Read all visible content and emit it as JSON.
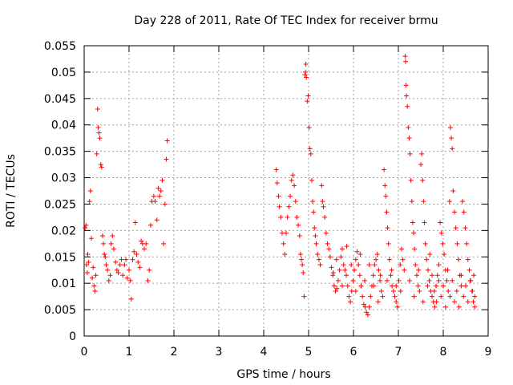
{
  "chart_data": {
    "type": "scatter",
    "title": "Day 228 of 2011, Rate Of TEC Index for receiver brmu",
    "xlabel": "GPS time / hours",
    "ylabel": "ROTI / TECUs",
    "xlim": [
      0,
      9
    ],
    "ylim": [
      0,
      0.055
    ],
    "x_ticks": [
      0,
      1,
      2,
      3,
      4,
      5,
      6,
      7,
      8,
      9
    ],
    "y_ticks": [
      0,
      0.005,
      0.01,
      0.015,
      0.02,
      0.025,
      0.03,
      0.035,
      0.04,
      0.045,
      0.05,
      0.055
    ],
    "x_tick_labels": [
      "0",
      "1",
      "2",
      "3",
      "4",
      "5",
      "6",
      "7",
      "8",
      "9"
    ],
    "y_tick_labels": [
      "0",
      "0.005",
      "0.01",
      "0.015",
      "0.02",
      "0.025",
      "0.03",
      "0.035",
      "0.04",
      "0.045",
      "0.05",
      "0.055"
    ],
    "grid": true,
    "marker": "+",
    "color": "#ff0000",
    "series": [
      {
        "name": "ROTI",
        "points": [
          [
            0.02,
            0.0205
          ],
          [
            0.04,
            0.021
          ],
          [
            0.05,
            0.0135
          ],
          [
            0.07,
            0.012
          ],
          [
            0.08,
            0.0155
          ],
          [
            0.1,
            0.014
          ],
          [
            0.12,
            0.0255
          ],
          [
            0.14,
            0.0275
          ],
          [
            0.16,
            0.0185
          ],
          [
            0.18,
            0.011
          ],
          [
            0.2,
            0.013
          ],
          [
            0.22,
            0.0095
          ],
          [
            0.24,
            0.0085
          ],
          [
            0.26,
            0.0115
          ],
          [
            0.28,
            0.0345
          ],
          [
            0.3,
            0.043
          ],
          [
            0.31,
            0.0395
          ],
          [
            0.33,
            0.0385
          ],
          [
            0.35,
            0.0375
          ],
          [
            0.37,
            0.0325
          ],
          [
            0.39,
            0.032
          ],
          [
            0.41,
            0.019
          ],
          [
            0.43,
            0.0175
          ],
          [
            0.45,
            0.0155
          ],
          [
            0.47,
            0.015
          ],
          [
            0.49,
            0.0135
          ],
          [
            0.52,
            0.0125
          ],
          [
            0.55,
            0.0105
          ],
          [
            0.58,
            0.0115
          ],
          [
            0.6,
            0.0175
          ],
          [
            0.63,
            0.019
          ],
          [
            0.66,
            0.0165
          ],
          [
            0.7,
            0.014
          ],
          [
            0.73,
            0.0125
          ],
          [
            0.76,
            0.012
          ],
          [
            0.8,
            0.0135
          ],
          [
            0.83,
            0.0145
          ],
          [
            0.86,
            0.0115
          ],
          [
            0.9,
            0.0135
          ],
          [
            0.93,
            0.0145
          ],
          [
            0.96,
            0.011
          ],
          [
            1.0,
            0.0125
          ],
          [
            1.03,
            0.0105
          ],
          [
            1.05,
            0.007
          ],
          [
            1.08,
            0.0145
          ],
          [
            1.11,
            0.016
          ],
          [
            1.14,
            0.0215
          ],
          [
            1.17,
            0.0155
          ],
          [
            1.2,
            0.014
          ],
          [
            1.24,
            0.013
          ],
          [
            1.27,
            0.018
          ],
          [
            1.3,
            0.0175
          ],
          [
            1.34,
            0.0165
          ],
          [
            1.38,
            0.0175
          ],
          [
            1.42,
            0.0105
          ],
          [
            1.45,
            0.0125
          ],
          [
            1.48,
            0.021
          ],
          [
            1.51,
            0.0255
          ],
          [
            1.55,
            0.0265
          ],
          [
            1.58,
            0.0255
          ],
          [
            1.62,
            0.022
          ],
          [
            1.65,
            0.028
          ],
          [
            1.68,
            0.0265
          ],
          [
            1.71,
            0.0275
          ],
          [
            1.74,
            0.0295
          ],
          [
            1.77,
            0.0175
          ],
          [
            1.8,
            0.025
          ],
          [
            1.83,
            0.0335
          ],
          [
            1.85,
            0.037
          ],
          [
            4.28,
            0.0315
          ],
          [
            4.3,
            0.029
          ],
          [
            4.33,
            0.0265
          ],
          [
            4.35,
            0.0245
          ],
          [
            4.38,
            0.0225
          ],
          [
            4.41,
            0.0195
          ],
          [
            4.44,
            0.0175
          ],
          [
            4.47,
            0.0155
          ],
          [
            4.5,
            0.0195
          ],
          [
            4.53,
            0.0225
          ],
          [
            4.56,
            0.0245
          ],
          [
            4.59,
            0.0265
          ],
          [
            4.62,
            0.0295
          ],
          [
            4.65,
            0.0305
          ],
          [
            4.68,
            0.0285
          ],
          [
            4.71,
            0.0255
          ],
          [
            4.74,
            0.0225
          ],
          [
            4.77,
            0.021
          ],
          [
            4.8,
            0.019
          ],
          [
            4.82,
            0.0155
          ],
          [
            4.84,
            0.0145
          ],
          [
            4.86,
            0.0135
          ],
          [
            4.88,
            0.012
          ],
          [
            4.9,
            0.0075
          ],
          [
            4.92,
            0.0495
          ],
          [
            4.93,
            0.05
          ],
          [
            4.94,
            0.0515
          ],
          [
            4.95,
            0.049
          ],
          [
            4.97,
            0.0445
          ],
          [
            4.99,
            0.0455
          ],
          [
            5.01,
            0.0395
          ],
          [
            5.03,
            0.0355
          ],
          [
            5.05,
            0.0345
          ],
          [
            5.07,
            0.0295
          ],
          [
            5.09,
            0.0255
          ],
          [
            5.11,
            0.0235
          ],
          [
            5.13,
            0.0205
          ],
          [
            5.15,
            0.019
          ],
          [
            5.17,
            0.0175
          ],
          [
            5.2,
            0.0155
          ],
          [
            5.23,
            0.0145
          ],
          [
            5.26,
            0.0135
          ],
          [
            5.29,
            0.0285
          ],
          [
            5.31,
            0.0255
          ],
          [
            5.33,
            0.0245
          ],
          [
            5.36,
            0.0225
          ],
          [
            5.39,
            0.0195
          ],
          [
            5.42,
            0.0175
          ],
          [
            5.45,
            0.0165
          ],
          [
            5.48,
            0.015
          ],
          [
            5.51,
            0.013
          ],
          [
            5.54,
            0.0115
          ],
          [
            5.57,
            0.0095
          ],
          [
            5.6,
            0.0085
          ],
          [
            5.63,
            0.009
          ],
          [
            5.66,
            0.0105
          ],
          [
            5.69,
            0.0125
          ],
          [
            5.72,
            0.015
          ],
          [
            5.75,
            0.0165
          ],
          [
            5.78,
            0.0135
          ],
          [
            5.81,
            0.0125
          ],
          [
            5.84,
            0.0115
          ],
          [
            5.87,
            0.0095
          ],
          [
            5.9,
            0.0075
          ],
          [
            5.93,
            0.0065
          ],
          [
            5.96,
            0.0085
          ],
          [
            5.99,
            0.0105
          ],
          [
            6.02,
            0.0125
          ],
          [
            6.05,
            0.0145
          ],
          [
            6.08,
            0.016
          ],
          [
            6.11,
            0.0135
          ],
          [
            6.14,
            0.0115
          ],
          [
            6.17,
            0.0095
          ],
          [
            6.2,
            0.0075
          ],
          [
            6.23,
            0.006
          ],
          [
            6.26,
            0.0055
          ],
          [
            6.29,
            0.0045
          ],
          [
            6.32,
            0.004
          ],
          [
            6.35,
            0.0055
          ],
          [
            6.38,
            0.0075
          ],
          [
            6.41,
            0.0095
          ],
          [
            6.44,
            0.0115
          ],
          [
            6.47,
            0.0135
          ],
          [
            6.5,
            0.0145
          ],
          [
            6.53,
            0.0155
          ],
          [
            6.56,
            0.0125
          ],
          [
            6.59,
            0.0105
          ],
          [
            6.62,
            0.0085
          ],
          [
            6.65,
            0.0075
          ],
          [
            6.68,
            0.0315
          ],
          [
            6.7,
            0.0285
          ],
          [
            6.72,
            0.0265
          ],
          [
            6.74,
            0.0235
          ],
          [
            6.76,
            0.0205
          ],
          [
            6.78,
            0.0175
          ],
          [
            6.8,
            0.0145
          ],
          [
            6.83,
            0.0115
          ],
          [
            6.86,
            0.0095
          ],
          [
            6.89,
            0.0085
          ],
          [
            6.92,
            0.0075
          ],
          [
            6.95,
            0.0065
          ],
          [
            6.98,
            0.0055
          ],
          [
            7.01,
            0.0105
          ],
          [
            7.04,
            0.0135
          ],
          [
            7.07,
            0.0165
          ],
          [
            7.1,
            0.0145
          ],
          [
            7.13,
            0.0125
          ],
          [
            7.15,
            0.053
          ],
          [
            7.16,
            0.052
          ],
          [
            7.17,
            0.0475
          ],
          [
            7.18,
            0.0455
          ],
          [
            7.2,
            0.0435
          ],
          [
            7.22,
            0.0395
          ],
          [
            7.24,
            0.0375
          ],
          [
            7.26,
            0.0345
          ],
          [
            7.28,
            0.0295
          ],
          [
            7.3,
            0.0255
          ],
          [
            7.32,
            0.0215
          ],
          [
            7.34,
            0.0195
          ],
          [
            7.36,
            0.0165
          ],
          [
            7.38,
            0.0135
          ],
          [
            7.41,
            0.0115
          ],
          [
            7.44,
            0.0095
          ],
          [
            7.47,
            0.0085
          ],
          [
            7.5,
            0.0325
          ],
          [
            7.52,
            0.0345
          ],
          [
            7.54,
            0.0295
          ],
          [
            7.56,
            0.0255
          ],
          [
            7.58,
            0.0215
          ],
          [
            7.6,
            0.0175
          ],
          [
            7.63,
            0.0145
          ],
          [
            7.66,
            0.0125
          ],
          [
            7.69,
            0.0105
          ],
          [
            7.72,
            0.0085
          ],
          [
            7.75,
            0.0075
          ],
          [
            7.78,
            0.0065
          ],
          [
            7.81,
            0.0055
          ],
          [
            7.84,
            0.0095
          ],
          [
            7.87,
            0.0115
          ],
          [
            7.9,
            0.0135
          ],
          [
            7.93,
            0.0215
          ],
          [
            7.96,
            0.0195
          ],
          [
            7.99,
            0.0175
          ],
          [
            8.02,
            0.0155
          ],
          [
            8.05,
            0.0125
          ],
          [
            8.08,
            0.0105
          ],
          [
            8.11,
            0.0085
          ],
          [
            8.14,
            0.0255
          ],
          [
            8.16,
            0.0395
          ],
          [
            8.18,
            0.0375
          ],
          [
            8.2,
            0.0355
          ],
          [
            8.22,
            0.0275
          ],
          [
            8.25,
            0.0235
          ],
          [
            8.28,
            0.0205
          ],
          [
            8.31,
            0.0175
          ],
          [
            8.34,
            0.0145
          ],
          [
            8.37,
            0.0115
          ],
          [
            8.4,
            0.0095
          ],
          [
            8.43,
            0.0255
          ],
          [
            8.46,
            0.0235
          ],
          [
            8.49,
            0.0205
          ],
          [
            8.52,
            0.0175
          ],
          [
            8.55,
            0.0145
          ],
          [
            8.58,
            0.0125
          ],
          [
            8.61,
            0.0105
          ],
          [
            8.64,
            0.0085
          ],
          [
            8.67,
            0.0065
          ],
          [
            8.7,
            0.0055
          ],
          [
            5.55,
            0.012
          ],
          [
            5.62,
            0.0145
          ],
          [
            5.75,
            0.0095
          ],
          [
            5.85,
            0.017
          ],
          [
            5.95,
            0.0135
          ],
          [
            6.05,
            0.0085
          ],
          [
            6.15,
            0.0155
          ],
          [
            6.25,
            0.0105
          ],
          [
            6.35,
            0.0135
          ],
          [
            6.45,
            0.0095
          ],
          [
            6.55,
            0.0065
          ],
          [
            6.6,
            0.0115
          ],
          [
            6.75,
            0.0105
          ],
          [
            6.85,
            0.0125
          ],
          [
            6.95,
            0.0095
          ],
          [
            7.05,
            0.0085
          ],
          [
            7.25,
            0.0105
          ],
          [
            7.35,
            0.0075
          ],
          [
            7.45,
            0.0125
          ],
          [
            7.55,
            0.0065
          ],
          [
            7.65,
            0.0095
          ],
          [
            7.7,
            0.0155
          ],
          [
            7.75,
            0.0115
          ],
          [
            7.8,
            0.0085
          ],
          [
            7.85,
            0.0065
          ],
          [
            7.9,
            0.0105
          ],
          [
            7.95,
            0.0075
          ],
          [
            8.0,
            0.0095
          ],
          [
            8.05,
            0.0055
          ],
          [
            8.1,
            0.0125
          ],
          [
            8.15,
            0.0075
          ],
          [
            8.2,
            0.0105
          ],
          [
            8.25,
            0.0065
          ],
          [
            8.3,
            0.0085
          ],
          [
            8.35,
            0.0055
          ],
          [
            8.4,
            0.0115
          ],
          [
            8.45,
            0.0075
          ],
          [
            8.5,
            0.0095
          ],
          [
            8.55,
            0.0065
          ],
          [
            8.6,
            0.0105
          ],
          [
            8.65,
            0.0085
          ],
          [
            8.68,
            0.0115
          ],
          [
            8.7,
            0.0075
          ]
        ]
      }
    ]
  }
}
